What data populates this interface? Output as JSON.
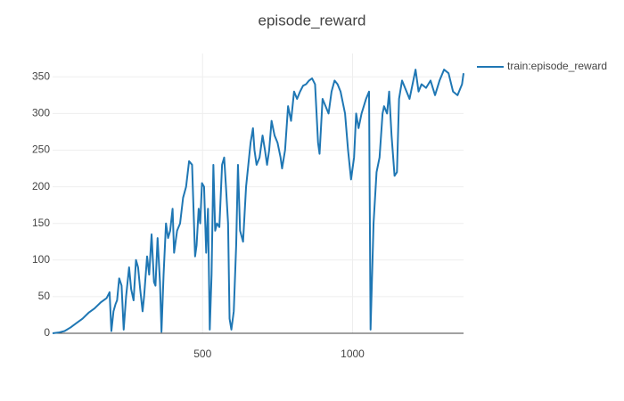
{
  "chart_data": {
    "type": "line",
    "title": "episode_reward",
    "x": [
      0,
      20,
      40,
      60,
      80,
      100,
      120,
      140,
      160,
      180,
      190,
      196,
      203,
      210,
      215,
      222,
      230,
      237,
      245,
      255,
      262,
      270,
      278,
      285,
      292,
      300,
      305,
      315,
      322,
      330,
      338,
      343,
      350,
      358,
      363,
      370,
      378,
      385,
      392,
      400,
      405,
      415,
      425,
      435,
      445,
      455,
      465,
      475,
      480,
      487,
      492,
      498,
      505,
      512,
      518,
      524,
      530,
      536,
      542,
      548,
      556,
      565,
      572,
      578,
      585,
      590,
      596,
      604,
      612,
      618,
      625,
      635,
      645,
      655,
      660,
      668,
      673,
      680,
      690,
      700,
      708,
      715,
      722,
      730,
      740,
      750,
      760,
      765,
      775,
      785,
      795,
      805,
      815,
      825,
      835,
      845,
      855,
      865,
      875,
      880,
      885,
      890,
      900,
      910,
      920,
      930,
      940,
      950,
      960,
      975,
      985,
      995,
      1005,
      1012,
      1020,
      1030,
      1045,
      1055,
      1060,
      1070,
      1080,
      1090,
      1100,
      1105,
      1115,
      1122,
      1130,
      1140,
      1148,
      1155,
      1165,
      1180,
      1190,
      1200,
      1210,
      1220,
      1230,
      1245,
      1260,
      1275,
      1290,
      1305,
      1320,
      1335,
      1350,
      1365,
      1370
    ],
    "series": [
      {
        "name": "train:episode_reward",
        "color": "#1f77b4",
        "values": [
          0,
          1,
          3,
          8,
          14,
          20,
          28,
          34,
          42,
          48,
          56,
          3,
          30,
          40,
          45,
          75,
          65,
          5,
          50,
          90,
          60,
          45,
          100,
          90,
          60,
          30,
          50,
          105,
          80,
          135,
          70,
          65,
          130,
          70,
          2,
          80,
          150,
          130,
          140,
          170,
          110,
          140,
          150,
          185,
          200,
          235,
          230,
          105,
          120,
          170,
          150,
          205,
          200,
          110,
          170,
          5,
          80,
          230,
          140,
          150,
          145,
          230,
          240,
          200,
          150,
          20,
          5,
          30,
          120,
          230,
          140,
          125,
          200,
          240,
          260,
          280,
          250,
          230,
          240,
          270,
          250,
          230,
          250,
          290,
          270,
          260,
          240,
          225,
          250,
          310,
          290,
          330,
          320,
          330,
          338,
          340,
          345,
          348,
          340,
          300,
          260,
          245,
          320,
          310,
          300,
          330,
          345,
          340,
          330,
          300,
          250,
          210,
          240,
          300,
          280,
          300,
          320,
          330,
          5,
          150,
          220,
          240,
          300,
          310,
          300,
          330,
          270,
          215,
          220,
          320,
          345,
          330,
          320,
          340,
          360,
          330,
          340,
          335,
          345,
          325,
          345,
          360,
          355,
          330,
          325,
          340,
          355
        ]
      }
    ],
    "xlim": [
      0,
      1370
    ],
    "ylim": [
      0,
      382
    ],
    "xticks": [
      500,
      1000
    ],
    "yticks": [
      0,
      50,
      100,
      150,
      200,
      250,
      300,
      350
    ],
    "grid": true,
    "legend": "top-right"
  }
}
